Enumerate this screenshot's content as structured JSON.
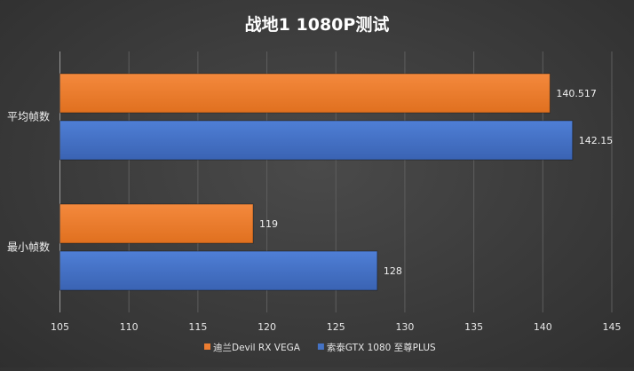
{
  "chart_data": {
    "type": "bar",
    "orientation": "horizontal",
    "title": "战地1 1080P测试",
    "categories": [
      "平均帧数",
      "最小帧数"
    ],
    "series": [
      {
        "name": "迪兰Devil RX VEGA",
        "values": [
          140.517,
          119
        ],
        "color": "#ed7d31"
      },
      {
        "name": "索泰GTX 1080 至尊PLUS",
        "values": [
          142.15,
          128
        ],
        "color": "#4472c4"
      }
    ],
    "data_labels": [
      [
        "140.517",
        "119"
      ],
      [
        "142.15",
        "128"
      ]
    ],
    "xlim": [
      105,
      145
    ],
    "xticks": [
      105,
      110,
      115,
      120,
      125,
      130,
      135,
      140,
      145
    ],
    "xlabel": "",
    "ylabel": "",
    "grid": true,
    "legend_position": "bottom"
  }
}
